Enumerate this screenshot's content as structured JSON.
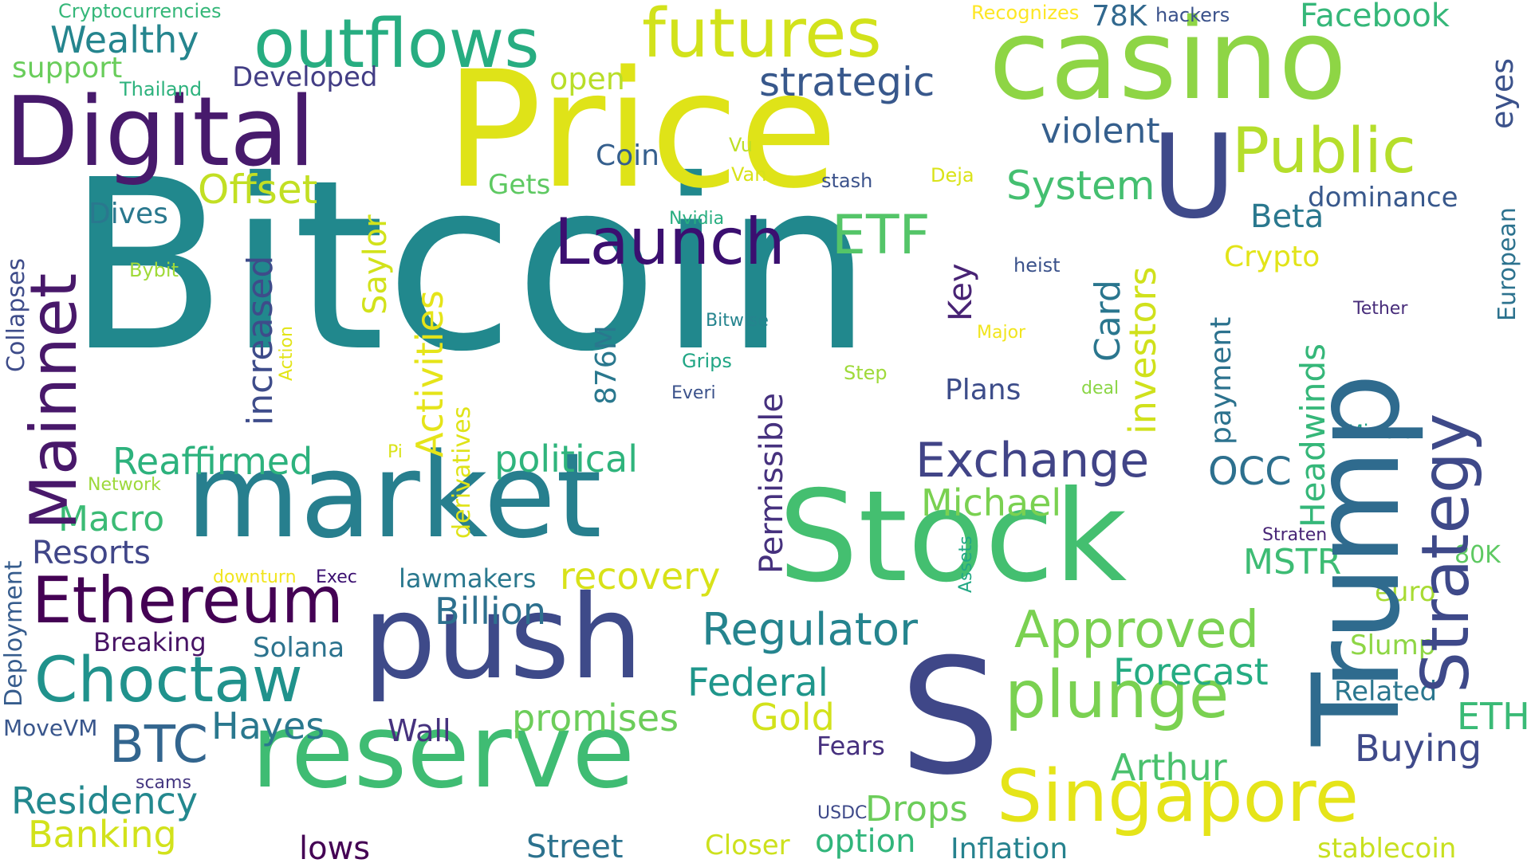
{
  "words": [
    {
      "text": "Bitcoin",
      "color": "#21888d"
    },
    {
      "text": "Price",
      "color": "#dfe318"
    },
    {
      "text": "casino",
      "color": "#8ed545"
    },
    {
      "text": "Digital",
      "color": "#471a6c"
    },
    {
      "text": "Trump",
      "color": "#2f6b8e"
    },
    {
      "text": "market",
      "color": "#277f8e"
    },
    {
      "text": "Stock",
      "color": "#44bf70"
    },
    {
      "text": "reserve",
      "color": "#3fbc73"
    },
    {
      "text": "push",
      "color": "#3e4a89"
    },
    {
      "text": "S",
      "color": "#3f4788"
    },
    {
      "text": "U",
      "color": "#3f4a8a"
    },
    {
      "text": "outflows",
      "color": "#27ad81"
    },
    {
      "text": "futures",
      "color": "#d2e21b"
    },
    {
      "text": "Singapore",
      "color": "#e5e419"
    },
    {
      "text": "Ethereum",
      "color": "#440154"
    },
    {
      "text": "Choctaw",
      "color": "#20928c"
    },
    {
      "text": "Public",
      "color": "#b5de2b"
    },
    {
      "text": "Launch",
      "color": "#3b0f70"
    },
    {
      "text": "plunge",
      "color": "#7ad151"
    },
    {
      "text": "Mainnet",
      "color": "#48186a"
    },
    {
      "text": "Strategy",
      "color": "#3e4989"
    },
    {
      "text": "ETF",
      "color": "#54c568"
    },
    {
      "text": "Exchange",
      "color": "#414487"
    },
    {
      "text": "Approved",
      "color": "#7ad151"
    },
    {
      "text": "Regulator",
      "color": "#25848e"
    },
    {
      "text": "Wealthy",
      "color": "#25858e"
    },
    {
      "text": "support",
      "color": "#69cd5b"
    },
    {
      "text": "Cryptocurrencies",
      "color": "#35b779"
    },
    {
      "text": "Thailand",
      "color": "#2db27d"
    },
    {
      "text": "Developed",
      "color": "#433e85"
    },
    {
      "text": "open",
      "color": "#b8de29"
    },
    {
      "text": "strategic",
      "color": "#38588c"
    },
    {
      "text": "Recognizes",
      "color": "#fde725"
    },
    {
      "text": "78K",
      "color": "#31688e"
    },
    {
      "text": "hackers",
      "color": "#3b528b"
    },
    {
      "text": "Facebook",
      "color": "#35b779"
    },
    {
      "text": "eyes",
      "color": "#3b528b"
    },
    {
      "text": "violent",
      "color": "#355f8d"
    },
    {
      "text": "Coin",
      "color": "#355f8d"
    },
    {
      "text": "Vu",
      "color": "#bddf26"
    },
    {
      "text": "Van",
      "color": "#d8e219"
    },
    {
      "text": "stash",
      "color": "#3b528b"
    },
    {
      "text": "Deja",
      "color": "#dae319"
    },
    {
      "text": "Gets",
      "color": "#5ec962"
    },
    {
      "text": "Offset",
      "color": "#c2df23"
    },
    {
      "text": "System",
      "color": "#44bf70"
    },
    {
      "text": "dominance",
      "color": "#38588c"
    },
    {
      "text": "European",
      "color": "#2c728e"
    },
    {
      "text": "Dives",
      "color": "#2a788e"
    },
    {
      "text": "Nvidia",
      "color": "#28ae80"
    },
    {
      "text": "Beta",
      "color": "#2a788e"
    },
    {
      "text": "Collapses",
      "color": "#3e4c8a"
    },
    {
      "text": "Bybit",
      "color": "#a0da39"
    },
    {
      "text": "Saylor",
      "color": "#d2e21b"
    },
    {
      "text": "heist",
      "color": "#3b528b"
    },
    {
      "text": "Crypto",
      "color": "#e2e418"
    },
    {
      "text": "Key",
      "color": "#482374"
    },
    {
      "text": "Card",
      "color": "#2a768e"
    },
    {
      "text": "Tether",
      "color": "#472c7a"
    },
    {
      "text": "increased",
      "color": "#3e4c8a"
    },
    {
      "text": "Action",
      "color": "#e2e418"
    },
    {
      "text": "Activities",
      "color": "#e5e419"
    },
    {
      "text": "Bitwise",
      "color": "#25848e"
    },
    {
      "text": "Major",
      "color": "#f1e51d"
    },
    {
      "text": "investors",
      "color": "#d0e11c"
    },
    {
      "text": "payment",
      "color": "#2c728e"
    },
    {
      "text": "Permissible",
      "color": "#46317e"
    },
    {
      "text": "876M",
      "color": "#2a788e"
    },
    {
      "text": "Grips",
      "color": "#21a685"
    },
    {
      "text": "Step",
      "color": "#9fda3a"
    },
    {
      "text": "Everi",
      "color": "#3b528b"
    },
    {
      "text": "Plans",
      "color": "#3d4d8a"
    },
    {
      "text": "deal",
      "color": "#8bd646"
    },
    {
      "text": "Headwinds",
      "color": "#35b779"
    },
    {
      "text": "Mirrors",
      "color": "#1fa088"
    },
    {
      "text": "derivatives",
      "color": "#dfe318"
    },
    {
      "text": "Reaffirmed",
      "color": "#2db27d"
    },
    {
      "text": "Pi",
      "color": "#dae319"
    },
    {
      "text": "political",
      "color": "#2fb47c"
    },
    {
      "text": "OCC",
      "color": "#2d708e"
    },
    {
      "text": "Network",
      "color": "#9dd93b"
    },
    {
      "text": "Macro",
      "color": "#3bbb75"
    },
    {
      "text": "Michael",
      "color": "#7ad151"
    },
    {
      "text": "Deployment",
      "color": "#365c8d"
    },
    {
      "text": "Resorts",
      "color": "#404688"
    },
    {
      "text": "Assets",
      "color": "#22a884"
    },
    {
      "text": "Straten",
      "color": "#482576"
    },
    {
      "text": "80K",
      "color": "#5ec962"
    },
    {
      "text": "downturn",
      "color": "#f1e51d"
    },
    {
      "text": "Exec",
      "color": "#3b0f70"
    },
    {
      "text": "lawmakers",
      "color": "#2a788e"
    },
    {
      "text": "recovery",
      "color": "#d8e219"
    },
    {
      "text": "MSTR",
      "color": "#3dbc74"
    },
    {
      "text": "euro",
      "color": "#a8db34"
    },
    {
      "text": "Billion",
      "color": "#2d708e"
    },
    {
      "text": "Breaking",
      "color": "#471365"
    },
    {
      "text": "Solana",
      "color": "#2c738e"
    },
    {
      "text": "Forecast",
      "color": "#25ac82"
    },
    {
      "text": "Slump",
      "color": "#8ed645"
    },
    {
      "text": "Federal",
      "color": "#1f968b"
    },
    {
      "text": "Related",
      "color": "#2a768e"
    },
    {
      "text": "MoveVM",
      "color": "#39568c"
    },
    {
      "text": "BTC",
      "color": "#32658e"
    },
    {
      "text": "Hayes",
      "color": "#2a788e"
    },
    {
      "text": "Wall",
      "color": "#46327e"
    },
    {
      "text": "promises",
      "color": "#6ccd5a"
    },
    {
      "text": "Gold",
      "color": "#d2e21b"
    },
    {
      "text": "ETH",
      "color": "#3aba76"
    },
    {
      "text": "Fears",
      "color": "#46307e"
    },
    {
      "text": "Buying",
      "color": "#3f4a8a"
    },
    {
      "text": "Arthur",
      "color": "#4ac16d"
    },
    {
      "text": "scams",
      "color": "#453781"
    },
    {
      "text": "Residency",
      "color": "#23888e"
    },
    {
      "text": "Banking",
      "color": "#d2e21b"
    },
    {
      "text": "lows",
      "color": "#440154"
    },
    {
      "text": "Street",
      "color": "#2c728e"
    },
    {
      "text": "USDC",
      "color": "#3e4989"
    },
    {
      "text": "Closer",
      "color": "#cde11d"
    },
    {
      "text": "Drops",
      "color": "#6ccd5a"
    },
    {
      "text": "option",
      "color": "#31b57b"
    },
    {
      "text": "Inflation",
      "color": "#26828e"
    },
    {
      "text": "stablecoin",
      "color": "#c8e020"
    }
  ]
}
